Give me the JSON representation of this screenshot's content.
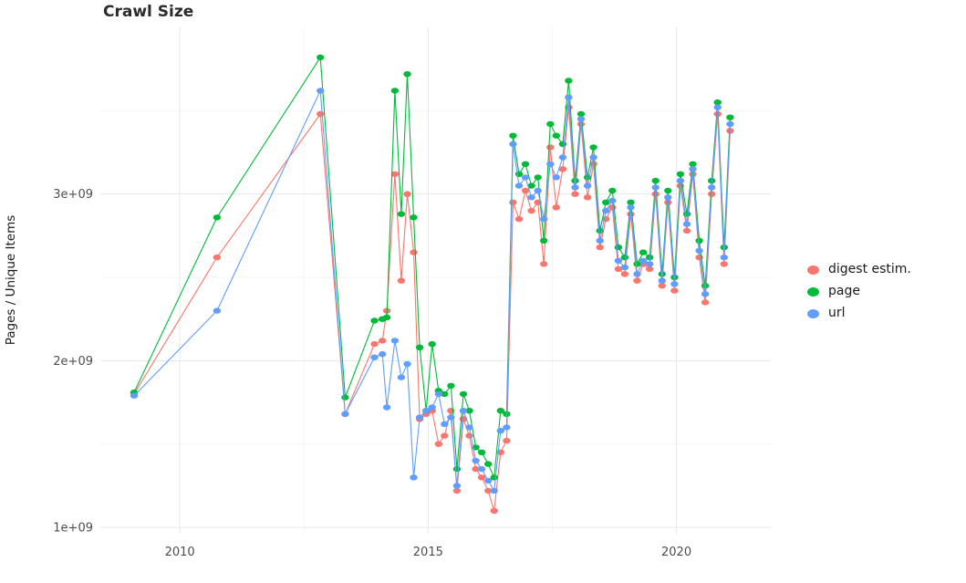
{
  "chart_data": {
    "type": "scatter",
    "title": "Crawl Size",
    "xlabel": "",
    "ylabel": "Pages / Unique Items",
    "legend_position": "right",
    "grid": true,
    "y_unit_multiplier": 1000000000,
    "x_axis": {
      "range": [
        2008.4,
        2021.9
      ],
      "ticks": [
        {
          "value": 2010,
          "label": "2010"
        },
        {
          "value": 2015,
          "label": "2015"
        },
        {
          "value": 2020,
          "label": "2020"
        }
      ],
      "minor": [
        2012.5,
        2017.5
      ]
    },
    "y_axis": {
      "range": [
        0.962,
        4.0
      ],
      "ticks": [
        {
          "value": 1,
          "label": "1e+09"
        },
        {
          "value": 2,
          "label": "2e+09"
        },
        {
          "value": 3,
          "label": "3e+09"
        }
      ],
      "minor": [
        1.5,
        2.5,
        3.5
      ]
    },
    "style": {
      "background": "#ffffff",
      "grid_major": "#e9e9e9",
      "grid_minor": "#f4f4f4",
      "tick_label_color": "#4d4d4d",
      "text_color": "#1a1a1a"
    },
    "x": [
      2009.08,
      2010.75,
      2012.83,
      2013.33,
      2013.92,
      2014.08,
      2014.17,
      2014.33,
      2014.46,
      2014.58,
      2014.71,
      2014.83,
      2014.96,
      2015.08,
      2015.21,
      2015.33,
      2015.46,
      2015.58,
      2015.71,
      2015.83,
      2015.96,
      2016.08,
      2016.21,
      2016.33,
      2016.46,
      2016.58,
      2016.71,
      2016.83,
      2016.96,
      2017.08,
      2017.21,
      2017.33,
      2017.46,
      2017.58,
      2017.71,
      2017.83,
      2017.96,
      2018.08,
      2018.21,
      2018.33,
      2018.46,
      2018.58,
      2018.71,
      2018.83,
      2018.96,
      2019.08,
      2019.21,
      2019.33,
      2019.46,
      2019.58,
      2019.71,
      2019.83,
      2019.96,
      2020.08,
      2020.21,
      2020.33,
      2020.46,
      2020.58,
      2020.71,
      2020.83,
      2020.96,
      2021.08
    ],
    "series": [
      {
        "name": "digest estim.",
        "color": "#F8766D",
        "values": [
          1.8,
          2.62,
          3.48,
          1.68,
          2.1,
          2.12,
          2.3,
          3.12,
          2.48,
          3.0,
          2.65,
          1.65,
          1.68,
          1.7,
          1.5,
          1.55,
          1.7,
          1.22,
          1.65,
          1.55,
          1.35,
          1.3,
          1.22,
          1.1,
          1.45,
          1.52,
          2.95,
          2.85,
          3.02,
          2.9,
          2.95,
          2.58,
          3.28,
          2.92,
          3.15,
          3.52,
          3.0,
          3.42,
          2.98,
          3.18,
          2.68,
          2.85,
          2.92,
          2.55,
          2.52,
          2.88,
          2.48,
          2.58,
          2.55,
          3.0,
          2.45,
          2.95,
          2.42,
          3.05,
          2.78,
          3.12,
          2.62,
          2.35,
          3.0,
          3.48,
          2.58,
          3.38
        ]
      },
      {
        "name": "page",
        "color": "#00BA38",
        "values": [
          1.81,
          2.86,
          3.82,
          1.78,
          2.24,
          2.25,
          2.26,
          3.62,
          2.88,
          3.72,
          2.86,
          2.08,
          1.7,
          2.1,
          1.82,
          1.8,
          1.85,
          1.35,
          1.8,
          1.7,
          1.48,
          1.45,
          1.38,
          1.3,
          1.7,
          1.68,
          3.35,
          3.12,
          3.18,
          3.05,
          3.1,
          2.72,
          3.42,
          3.35,
          3.3,
          3.68,
          3.08,
          3.48,
          3.1,
          3.28,
          2.78,
          2.95,
          3.02,
          2.68,
          2.62,
          2.95,
          2.58,
          2.65,
          2.62,
          3.08,
          2.52,
          3.02,
          2.5,
          3.12,
          2.88,
          3.18,
          2.72,
          2.45,
          3.08,
          3.55,
          2.68,
          3.46
        ]
      },
      {
        "name": "url",
        "color": "#619CFF",
        "values": [
          1.79,
          2.3,
          3.62,
          1.68,
          2.02,
          2.04,
          1.72,
          2.12,
          1.9,
          1.98,
          1.3,
          1.66,
          1.7,
          1.72,
          1.8,
          1.62,
          1.66,
          1.25,
          1.7,
          1.6,
          1.4,
          1.35,
          1.28,
          1.22,
          1.58,
          1.6,
          3.3,
          3.05,
          3.1,
          2.98,
          3.02,
          2.85,
          3.18,
          3.1,
          3.22,
          3.58,
          3.04,
          3.45,
          3.05,
          3.22,
          2.72,
          2.9,
          2.96,
          2.6,
          2.56,
          2.92,
          2.52,
          2.6,
          2.58,
          3.04,
          2.48,
          2.98,
          2.46,
          3.08,
          2.82,
          3.15,
          2.66,
          2.4,
          3.04,
          3.52,
          2.62,
          3.42
        ]
      }
    ]
  }
}
